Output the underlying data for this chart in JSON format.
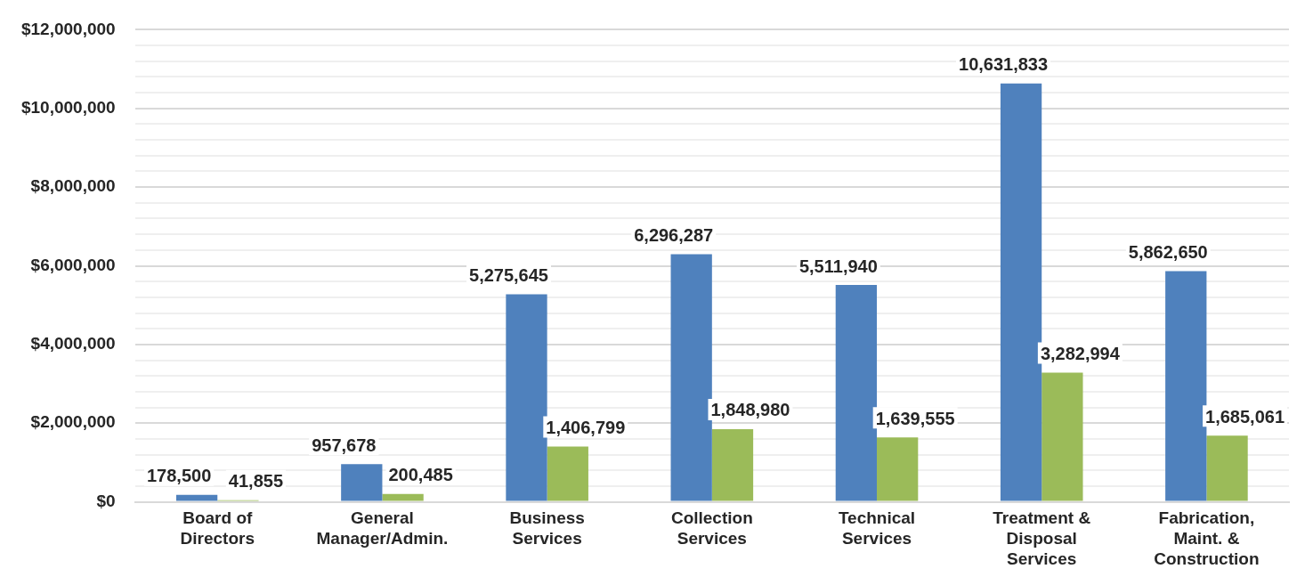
{
  "chart_data": {
    "type": "bar",
    "categories": [
      "Board of Directors",
      "General Manager/Admin.",
      "Business Services",
      "Collection Services",
      "Technical Services",
      "Treatment & Disposal Services",
      "Fabrication, Maint. & Construction"
    ],
    "series": [
      {
        "color": "#4f81bd",
        "values": [
          178500,
          957678,
          5275645,
          6296287,
          5511940,
          10631833,
          5862650
        ],
        "value_labels": [
          "178,500",
          "957,678",
          "5,275,645",
          "6,296,287",
          "5,511,940",
          "10,631,833",
          "5,862,650"
        ]
      },
      {
        "color": "#9bbb59",
        "values": [
          41855,
          200485,
          1406799,
          1848980,
          1639555,
          3282994,
          1685061
        ],
        "value_labels": [
          "41,855",
          "200,485",
          "1,406,799",
          "1,848,980",
          "1,639,555",
          "3,282,994",
          "1,685,061"
        ]
      }
    ],
    "ylim": [
      0,
      12000000
    ],
    "yticks": [
      {
        "value": 0,
        "label": "$0"
      },
      {
        "value": 400000,
        "label": null
      },
      {
        "value": 800000,
        "label": null
      },
      {
        "value": 1200000,
        "label": null
      },
      {
        "value": 1600000,
        "label": null
      },
      {
        "value": 2000000,
        "label": "$2,000,000"
      },
      {
        "value": 2400000,
        "label": null
      },
      {
        "value": 2800000,
        "label": null
      },
      {
        "value": 3200000,
        "label": null
      },
      {
        "value": 3600000,
        "label": null
      },
      {
        "value": 4000000,
        "label": "$4,000,000"
      },
      {
        "value": 4400000,
        "label": null
      },
      {
        "value": 4800000,
        "label": null
      },
      {
        "value": 5200000,
        "label": null
      },
      {
        "value": 5600000,
        "label": null
      },
      {
        "value": 6000000,
        "label": "$6,000,000"
      },
      {
        "value": 6400000,
        "label": null
      },
      {
        "value": 6800000,
        "label": null
      },
      {
        "value": 7200000,
        "label": null
      },
      {
        "value": 7600000,
        "label": null
      },
      {
        "value": 8000000,
        "label": "$8,000,000"
      },
      {
        "value": 8400000,
        "label": null
      },
      {
        "value": 8800000,
        "label": null
      },
      {
        "value": 9200000,
        "label": null
      },
      {
        "value": 9600000,
        "label": null
      },
      {
        "value": 10000000,
        "label": "$10,000,000"
      },
      {
        "value": 10400000,
        "label": null
      },
      {
        "value": 10800000,
        "label": null
      },
      {
        "value": 11200000,
        "label": null
      },
      {
        "value": 11600000,
        "label": null
      },
      {
        "value": 12000000,
        "label": "$12,000,000"
      }
    ],
    "grid": "y"
  }
}
